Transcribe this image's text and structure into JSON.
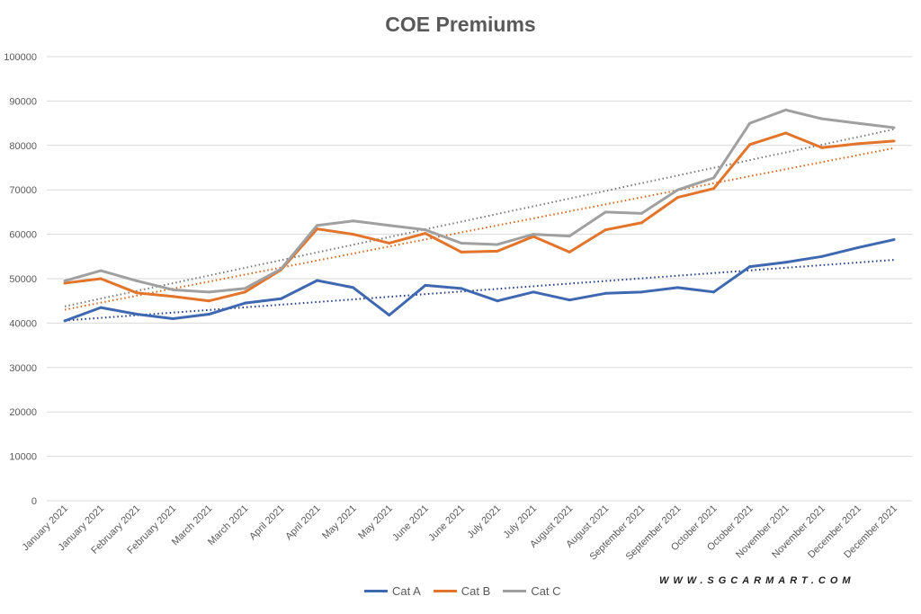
{
  "chart_data": {
    "type": "line",
    "title": "COE Premiums",
    "xlabel": "",
    "ylabel": "",
    "ylim": [
      0,
      100000
    ],
    "yticks": [
      "0",
      "10000",
      "20000",
      "30000",
      "40000",
      "50000",
      "60000",
      "70000",
      "80000",
      "90000",
      "100000"
    ],
    "grid": true,
    "legend": "bottom",
    "trendlines": "linear, dotted, one per series",
    "categories": [
      "January 2021",
      "January 2021",
      "February 2021",
      "February 2021",
      "March 2021",
      "March 2021",
      "April 2021",
      "April 2021",
      "May 2021",
      "May 2021",
      "June 2021",
      "June 2021",
      "July 2021",
      "July 2021",
      "August 2021",
      "August 2021",
      "September 2021",
      "September 2021",
      "October 2021",
      "October 2021",
      "November 2021",
      "November 2021",
      "December 2021",
      "December 2021"
    ],
    "series": [
      {
        "name": "Cat A",
        "color": "#3f68b1",
        "trend_color": "#1f3b8a",
        "values": [
          40500,
          43500,
          42000,
          41000,
          42000,
          44500,
          45500,
          49600,
          48000,
          41800,
          48500,
          47800,
          45000,
          47000,
          45200,
          46700,
          47000,
          48000,
          47000,
          52700,
          53700,
          55000,
          57000,
          58800
        ]
      },
      {
        "name": "Cat B",
        "color": "#e2742b",
        "trend_color": "#d9651c",
        "values": [
          49000,
          50000,
          46800,
          46000,
          45000,
          47000,
          52000,
          61200,
          60000,
          58000,
          60200,
          56000,
          56200,
          59500,
          56000,
          61000,
          62600,
          68300,
          70300,
          80200,
          82800,
          79500,
          80400,
          81000
        ]
      },
      {
        "name": "Cat C",
        "color": "#a0a0a0",
        "trend_color": "#7a7a7a",
        "values": [
          49500,
          51800,
          49500,
          47500,
          47000,
          47800,
          52200,
          62000,
          63000,
          62000,
          61000,
          58000,
          57700,
          60000,
          59600,
          65000,
          64700,
          70000,
          72700,
          85000,
          88000,
          86000,
          85000,
          84000
        ]
      }
    ]
  },
  "watermark": "WWW.SGCARMART.COM"
}
